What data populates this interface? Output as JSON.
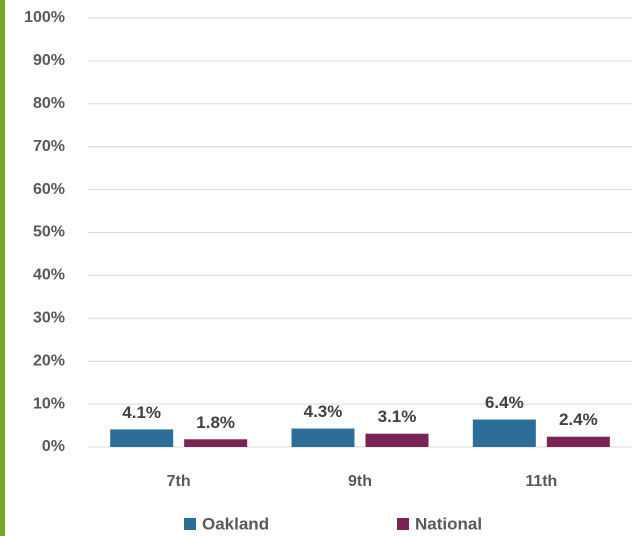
{
  "chart_data": {
    "type": "bar",
    "categories": [
      "7th",
      "9th",
      "11th"
    ],
    "series": [
      {
        "name": "Oakland",
        "color": "#2b6e98",
        "values": [
          4.1,
          4.3,
          6.4
        ],
        "value_labels": [
          "4.1%",
          "4.3%",
          "6.4%"
        ]
      },
      {
        "name": "National",
        "color": "#7a2456",
        "values": [
          1.8,
          3.1,
          2.4
        ],
        "value_labels": [
          "1.8%",
          "3.1%",
          "2.4%"
        ]
      }
    ],
    "ylim": [
      0,
      100
    ],
    "yticks": [
      {
        "value": 0,
        "label": "0%"
      },
      {
        "value": 10,
        "label": "10%"
      },
      {
        "value": 20,
        "label": "20%"
      },
      {
        "value": 30,
        "label": "30%"
      },
      {
        "value": 40,
        "label": "40%"
      },
      {
        "value": 50,
        "label": "50%"
      },
      {
        "value": 60,
        "label": "60%"
      },
      {
        "value": 70,
        "label": "70%"
      },
      {
        "value": 80,
        "label": "80%"
      },
      {
        "value": 90,
        "label": "90%"
      },
      {
        "value": 100,
        "label": "100%"
      }
    ],
    "grid": true,
    "legend": "bottom"
  }
}
